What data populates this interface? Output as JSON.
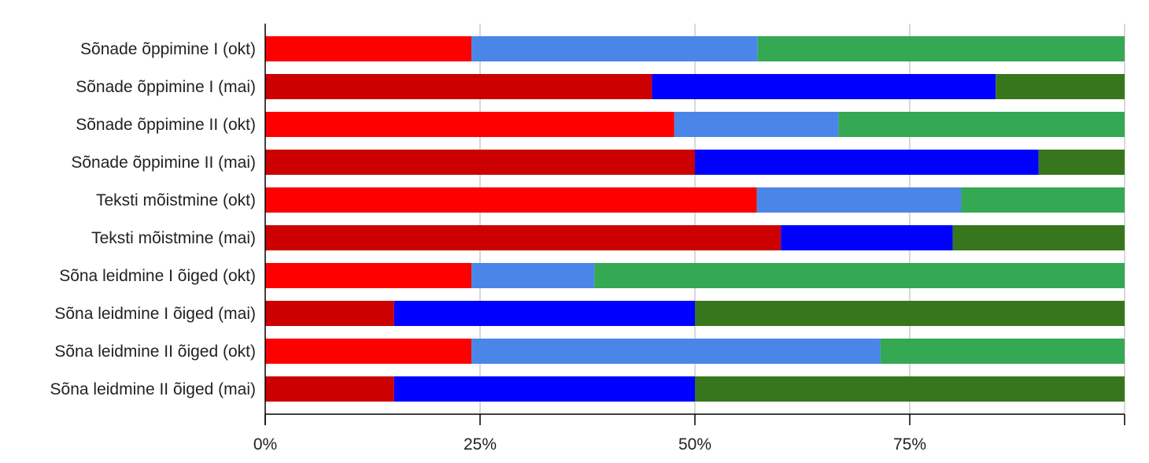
{
  "chart_data": {
    "type": "bar",
    "orientation": "horizontal",
    "stacking": "percent",
    "title": "",
    "xlabel": "",
    "ylabel": "",
    "xlim": [
      0,
      100
    ],
    "grid": true,
    "legend": "none",
    "categories": [
      "Sõnade õppimine I (okt)",
      "Sõnade õppimine I (mai)",
      "Sõnade õppimine II (okt)",
      "Sõnade õppimine II (mai)",
      "Teksti mõistmine (okt)",
      "Teksti mõistmine (mai)",
      "Sõna leidmine I õiged (okt)",
      "Sõna leidmine I õiged (mai)",
      "Sõna leidmine II õiged (okt)",
      "Sõna leidmine II õiged (mai)"
    ],
    "series": [
      {
        "values": [
          24,
          45,
          47.6,
          50,
          57.2,
          60,
          24,
          15,
          24,
          15
        ]
      },
      {
        "values": [
          33.3,
          40,
          19.1,
          40,
          23.8,
          20,
          14.3,
          35,
          47.6,
          35
        ]
      },
      {
        "values": [
          42.7,
          15,
          33.3,
          10,
          19,
          20,
          61.7,
          50,
          28.4,
          50
        ]
      }
    ],
    "bar_colors": [
      [
        "#ff0000",
        "#4a86e8",
        "#34a853"
      ],
      [
        "#cc0000",
        "#0000ff",
        "#38761d"
      ],
      [
        "#ff0000",
        "#4a86e8",
        "#34a853"
      ],
      [
        "#cc0000",
        "#0000ff",
        "#38761d"
      ],
      [
        "#ff0000",
        "#4a86e8",
        "#34a853"
      ],
      [
        "#cc0000",
        "#0000ff",
        "#38761d"
      ],
      [
        "#ff0000",
        "#4a86e8",
        "#34a853"
      ],
      [
        "#cc0000",
        "#0000ff",
        "#38761d"
      ],
      [
        "#ff0000",
        "#4a86e8",
        "#34a853"
      ],
      [
        "#cc0000",
        "#0000ff",
        "#38761d"
      ]
    ],
    "x_ticks": [
      {
        "value": 0,
        "label": "0%"
      },
      {
        "value": 25,
        "label": "25%"
      },
      {
        "value": 50,
        "label": "50%"
      },
      {
        "value": 75,
        "label": "75%"
      },
      {
        "value": 100,
        "label": ""
      }
    ],
    "grid_color": "#cccccc",
    "axis_color": "#000000"
  }
}
